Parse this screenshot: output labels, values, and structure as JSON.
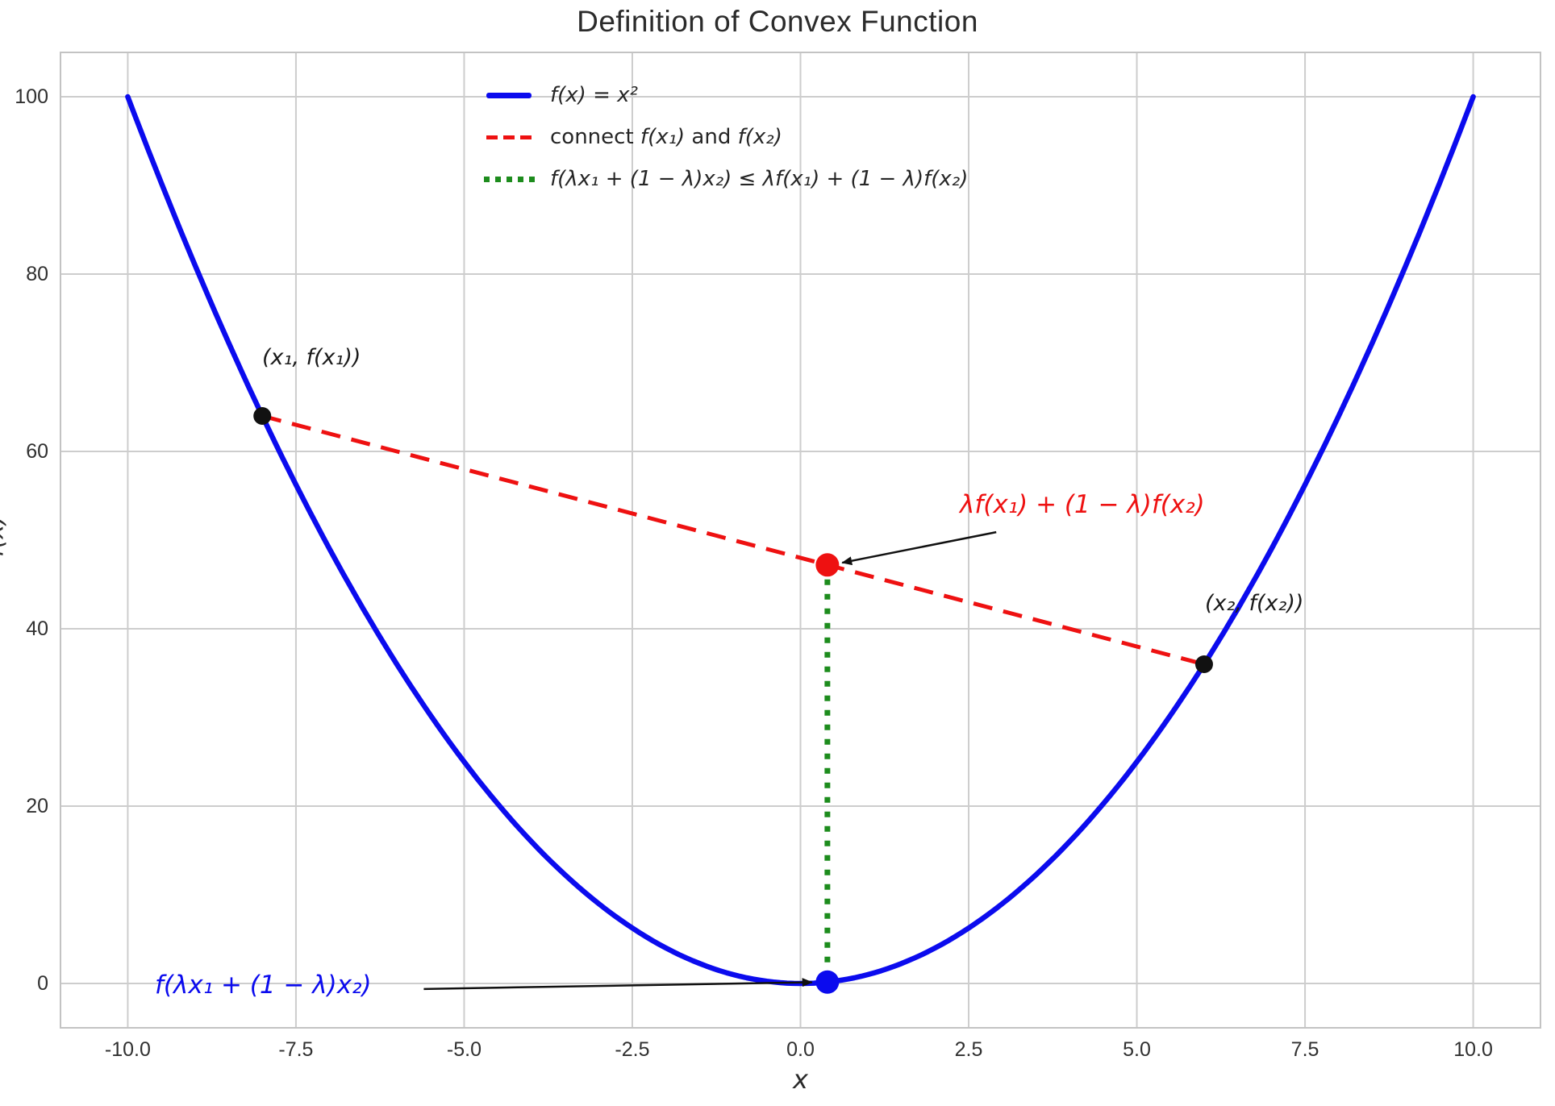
{
  "title": "Definition of Convex Function",
  "axes": {
    "xlabel": "x",
    "ylabel": "f(x)",
    "xtick_values": [
      -10,
      -7.5,
      -5,
      -2.5,
      0,
      2.5,
      5,
      7.5,
      10
    ],
    "xtick_labels": [
      "-10.0",
      "-7.5",
      "-5.0",
      "-2.5",
      "0.0",
      "2.5",
      "5.0",
      "7.5",
      "10.0"
    ],
    "ytick_values": [
      0,
      20,
      40,
      60,
      80,
      100
    ],
    "ytick_labels": [
      "0",
      "20",
      "40",
      "60",
      "80",
      "100"
    ],
    "grid": true
  },
  "legend": {
    "position": "upper center",
    "frame": false,
    "items": [
      {
        "label": "f(x) = x²",
        "color": "#0b0bee",
        "style": "solid"
      },
      {
        "parts": [
          "connect ",
          "f(x₁)",
          " and ",
          "f(x₂)"
        ],
        "color": "#ee1111",
        "style": "dashed"
      },
      {
        "label": "f(λx₁ + (1 − λ)x₂) ≤ λf(x₁) + (1 − λ)f(x₂)",
        "color": "#1d8c1d",
        "style": "dotted"
      }
    ]
  },
  "chart_data": {
    "type": "line",
    "title": "Definition of Convex Function",
    "xlabel": "x",
    "ylabel": "f(x)",
    "xlim": [
      -11,
      11
    ],
    "ylim": [
      -5,
      105
    ],
    "grid": true,
    "curve": {
      "fn": "x^2",
      "x_min": -10,
      "x_max": 10,
      "color": "#0b0bee",
      "style": "solid"
    },
    "lambda": 0.4,
    "points": {
      "x1": {
        "x": -8,
        "y": 64,
        "label": "(x₁, f(x₁))",
        "color": "#111111"
      },
      "x2": {
        "x": 6,
        "y": 36,
        "label": "(x₂, f(x₂))",
        "color": "#111111"
      },
      "chord_point": {
        "x": 0.4,
        "y": 47.2,
        "label": "λf(x₁) + (1 − λ)f(x₂)",
        "color": "#ee1111"
      },
      "curve_point": {
        "x": 0.4,
        "y": 0.16,
        "label": "f(λx₁ + (1 − λ)x₂)",
        "color": "#0b0bee"
      }
    },
    "chord": {
      "from": [
        -8,
        64
      ],
      "to": [
        6,
        36
      ],
      "color": "#ee1111",
      "style": "dashed"
    },
    "vertical_segment": {
      "x": 0.4,
      "y_from": 0.16,
      "y_to": 47.2,
      "color": "#1d8c1d",
      "style": "dotted"
    },
    "arrows": [
      {
        "name": "arrow-to-chord-point",
        "from": [
          2.91,
          50.9
        ],
        "to": [
          0.62,
          47.45
        ]
      },
      {
        "name": "arrow-to-curve-point",
        "from": [
          -5.6,
          -0.62
        ],
        "to": [
          0.17,
          0.14
        ]
      }
    ],
    "colors": {
      "grid": "#cdcdcd",
      "spine": "#c3c3c3",
      "arrow": "#111111"
    }
  }
}
